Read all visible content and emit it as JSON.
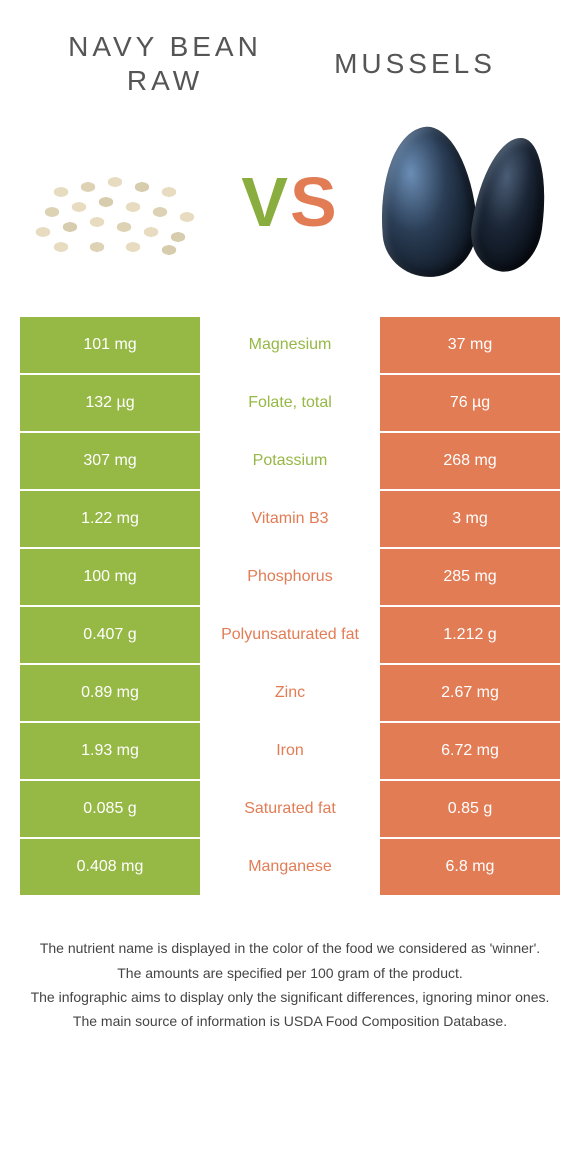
{
  "foods": {
    "left": {
      "title_line1": "NAVY BEAN",
      "title_line2": "RAW",
      "color": "#96b845"
    },
    "right": {
      "title_line1": "MUSSELS",
      "color": "#e27c55"
    }
  },
  "vs": {
    "v": "V",
    "s": "S"
  },
  "colors": {
    "green": "#96b845",
    "orange": "#e27c55",
    "row_text": "#ffffff"
  },
  "nutrients": [
    {
      "name": "Magnesium",
      "left": "101 mg",
      "right": "37 mg",
      "winner": "left"
    },
    {
      "name": "Folate, total",
      "left": "132 µg",
      "right": "76 µg",
      "winner": "left"
    },
    {
      "name": "Potassium",
      "left": "307 mg",
      "right": "268 mg",
      "winner": "left"
    },
    {
      "name": "Vitamin B3",
      "left": "1.22 mg",
      "right": "3 mg",
      "winner": "right"
    },
    {
      "name": "Phosphorus",
      "left": "100 mg",
      "right": "285 mg",
      "winner": "right"
    },
    {
      "name": "Polyunsaturated fat",
      "left": "0.407 g",
      "right": "1.212 g",
      "winner": "right"
    },
    {
      "name": "Zinc",
      "left": "0.89 mg",
      "right": "2.67 mg",
      "winner": "right"
    },
    {
      "name": "Iron",
      "left": "1.93 mg",
      "right": "6.72 mg",
      "winner": "right"
    },
    {
      "name": "Saturated fat",
      "left": "0.085 g",
      "right": "0.85 g",
      "winner": "right"
    },
    {
      "name": "Manganese",
      "left": "0.408 mg",
      "right": "6.8 mg",
      "winner": "right"
    }
  ],
  "footer": {
    "line1": "The nutrient name is displayed in the color of the food we considered as 'winner'.",
    "line2": "The amounts are specified per 100 gram of the product.",
    "line3": "The infographic aims to display only the significant differences, ignoring minor ones.",
    "line4": "The main source of information is USDA Food Composition Database."
  }
}
